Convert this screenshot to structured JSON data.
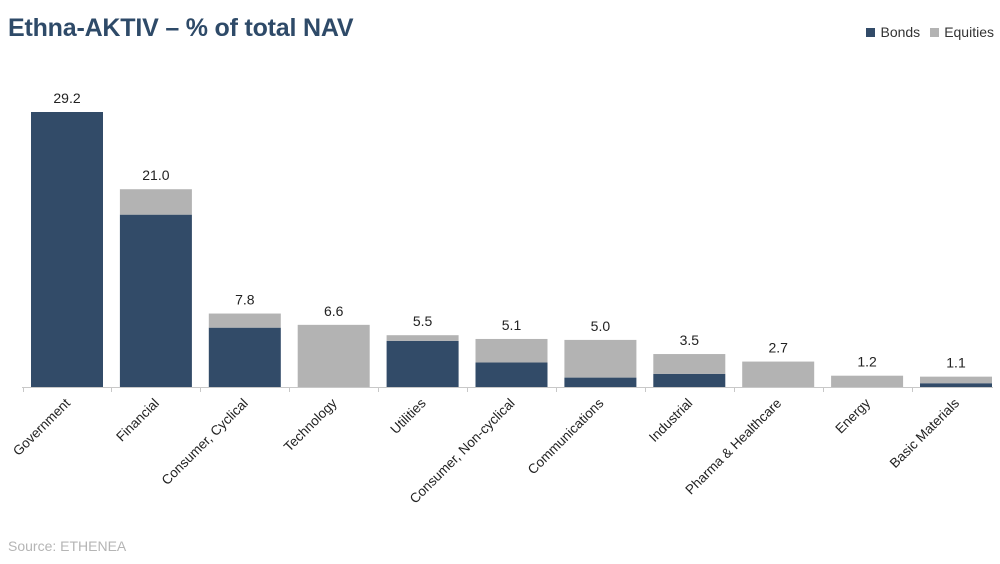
{
  "title": "Ethna-AKTIV – % of total NAV",
  "source": "Source: ETHENEA",
  "legend": [
    {
      "label": "Bonds",
      "color": "#324b68"
    },
    {
      "label": "Equities",
      "color": "#b3b3b3"
    }
  ],
  "chart_data": {
    "type": "bar",
    "stacked": true,
    "categories": [
      "Government",
      "Financial",
      "Consumer, Cyclical",
      "Technology",
      "Utilities",
      "Consumer, Non-cyclical",
      "Communications",
      "Industrial",
      "Pharma & Healthcare",
      "Energy",
      "Basic Materials"
    ],
    "series": [
      {
        "name": "Bonds",
        "color": "#324b68",
        "values": [
          29.2,
          18.3,
          6.3,
          0.0,
          4.9,
          2.6,
          1.0,
          1.4,
          0.0,
          0.0,
          0.4
        ]
      },
      {
        "name": "Equities",
        "color": "#b3b3b3",
        "values": [
          0.0,
          2.7,
          1.5,
          6.6,
          0.6,
          2.5,
          4.0,
          2.1,
          2.7,
          1.2,
          0.7
        ]
      }
    ],
    "totals": [
      "29.2",
      "21.0",
      "7.8",
      "6.6",
      "5.5",
      "5.1",
      "5.0",
      "3.5",
      "2.7",
      "1.2",
      "1.1"
    ],
    "ylim": [
      0,
      29.2
    ],
    "grid": false,
    "legend_position": "top-right",
    "data_labels": "totals above bars"
  }
}
